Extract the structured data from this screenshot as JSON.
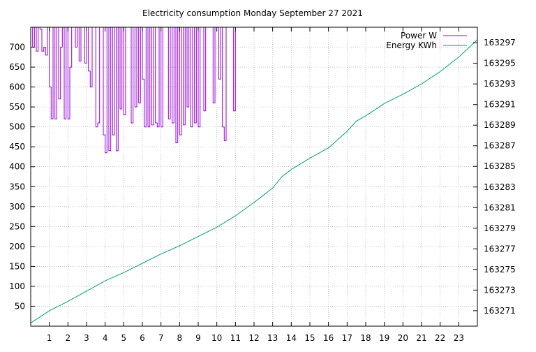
{
  "chart_data": {
    "type": "line",
    "title": "Electricity consumption Monday September 27 2021",
    "x_ticks": [
      "1",
      "2",
      "3",
      "4",
      "5",
      "6",
      "7",
      "8",
      "9",
      "10",
      "11",
      "12",
      "13",
      "14",
      "15",
      "16",
      "17",
      "18",
      "19",
      "20",
      "21",
      "22",
      "23"
    ],
    "y_left_ticks": [
      "50",
      "100",
      "150",
      "200",
      "250",
      "300",
      "350",
      "400",
      "450",
      "500",
      "550",
      "600",
      "650",
      "700"
    ],
    "y_right_ticks": [
      "163271",
      "163273",
      "163275",
      "163277",
      "163279",
      "163281",
      "163283",
      "163285",
      "163287",
      "163289",
      "163291",
      "163293",
      "163295",
      "163297"
    ],
    "xlim": [
      0,
      24
    ],
    "ylim_left": [
      0,
      750
    ],
    "ylim_right": [
      163269.5,
      163298.5
    ],
    "grid": true,
    "legend_position": "top-right",
    "colors": {
      "power": "#9400d3",
      "energy": "#009e73"
    },
    "series": [
      {
        "name": "Power W",
        "axis": "left",
        "x": [
          0.0,
          0.1,
          0.2,
          0.3,
          0.4,
          0.5,
          0.6,
          0.7,
          0.8,
          0.9,
          1.0,
          1.1,
          1.2,
          1.3,
          1.4,
          1.5,
          1.6,
          1.7,
          1.8,
          1.9,
          2.0,
          2.1,
          2.2,
          2.3,
          2.4,
          2.5,
          2.6,
          2.7,
          2.8,
          2.9,
          3.0,
          3.1,
          3.2,
          3.3,
          3.4,
          3.5,
          3.6,
          3.7,
          3.8,
          3.9,
          4.0,
          4.1,
          4.2,
          4.3,
          4.4,
          4.5,
          4.6,
          4.7,
          4.8,
          4.9,
          5.0,
          5.1,
          5.2,
          5.3,
          5.4,
          5.5,
          5.6,
          5.7,
          5.8,
          5.9,
          6.0,
          6.1,
          6.2,
          6.3,
          6.4,
          6.5,
          6.6,
          6.7,
          6.8,
          6.9,
          7.0,
          7.1,
          7.2,
          7.3,
          7.4,
          7.5,
          7.6,
          7.7,
          7.8,
          7.9,
          8.0,
          8.1,
          8.2,
          8.3,
          8.4,
          8.5,
          8.6,
          8.7,
          8.8,
          8.9,
          9.0,
          9.1,
          9.2,
          9.3,
          9.4,
          9.5,
          9.6,
          9.7,
          9.8,
          9.9,
          10.0,
          10.1,
          10.2,
          10.3,
          10.4,
          10.5,
          10.6,
          10.7,
          10.8,
          10.9,
          11.0
        ],
        "values": [
          750,
          700,
          750,
          690,
          750,
          745,
          690,
          700,
          680,
          750,
          600,
          520,
          750,
          520,
          750,
          570,
          700,
          750,
          520,
          750,
          520,
          650,
          750,
          750,
          700,
          750,
          665,
          750,
          750,
          660,
          750,
          640,
          600,
          750,
          750,
          500,
          510,
          750,
          750,
          480,
          435,
          750,
          440,
          750,
          480,
          750,
          440,
          750,
          545,
          750,
          530,
          750,
          750,
          750,
          510,
          750,
          550,
          750,
          560,
          750,
          620,
          500,
          750,
          500,
          750,
          505,
          750,
          510,
          500,
          750,
          500,
          750,
          750,
          750,
          520,
          750,
          510,
          750,
          460,
          750,
          480,
          750,
          505,
          750,
          550,
          750,
          500,
          750,
          510,
          750,
          500,
          750,
          750,
          540,
          750,
          750,
          750,
          750,
          560,
          750,
          750,
          620,
          750,
          500,
          465,
          750,
          750,
          750,
          750,
          540,
          740
        ]
      },
      {
        "name": "Energy KWh",
        "axis": "right",
        "x": [
          0,
          1,
          2,
          3,
          4,
          5,
          6,
          7,
          8,
          9,
          10,
          11,
          12,
          13,
          13.5,
          14,
          15,
          16,
          16.5,
          17,
          17.5,
          18,
          19,
          20,
          21,
          22,
          23,
          24
        ],
        "values": [
          163269.8,
          163271.0,
          163271.9,
          163272.9,
          163273.9,
          163274.7,
          163275.6,
          163276.5,
          163277.3,
          163278.2,
          163279.1,
          163280.2,
          163281.5,
          163282.9,
          163284.0,
          163284.7,
          163285.8,
          163286.8,
          163287.6,
          163288.4,
          163289.4,
          163289.9,
          163291.1,
          163292.0,
          163293.0,
          163294.2,
          163295.6,
          163297.3
        ]
      }
    ]
  }
}
